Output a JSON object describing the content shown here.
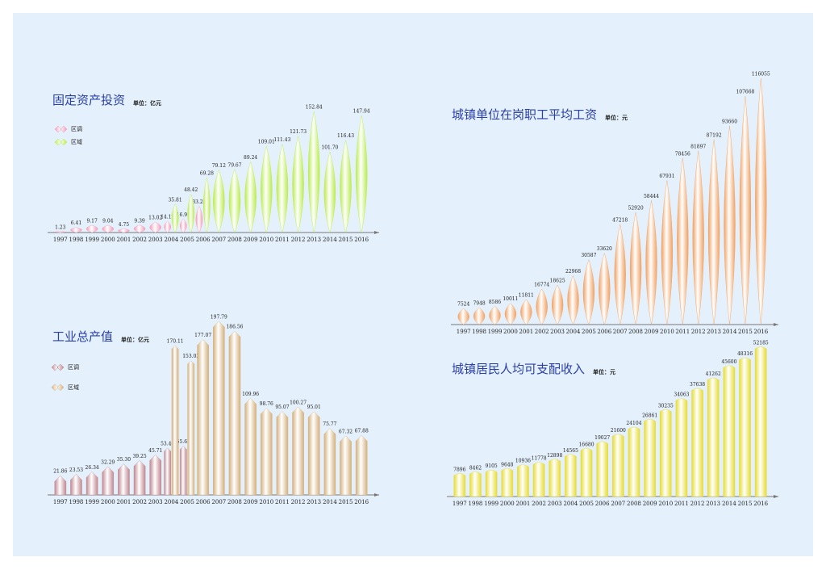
{
  "chart_data": [
    {
      "type": "bar",
      "title": "固定资产投资",
      "unit": "单位：亿元",
      "categories": [
        "1997",
        "1998",
        "1999",
        "2000",
        "2001",
        "2002",
        "2003",
        "2004",
        "2005",
        "2006",
        "2007",
        "2008",
        "2009",
        "2010",
        "2011",
        "2012",
        "2013",
        "2014",
        "2015",
        "2016"
      ],
      "series": [
        {
          "name": "区调",
          "color": "#f29ab8",
          "values": [
            1.23,
            6.41,
            9.17,
            9.04,
            4.75,
            9.39,
            13.02,
            14.12,
            16.91,
            33.25,
            null,
            null,
            null,
            null,
            null,
            null,
            null,
            null,
            null,
            null
          ],
          "value_labels": [
            "1.23",
            "6.41",
            "9.17",
            "9.04",
            "4.75",
            "9.39",
            "13.02",
            "14.12",
            "16.91",
            "33.25",
            null,
            null,
            null,
            null,
            null,
            null,
            null,
            null,
            null,
            null
          ]
        },
        {
          "name": "区域",
          "color": "#b8ec4a",
          "values": [
            null,
            null,
            null,
            null,
            null,
            null,
            null,
            35.81,
            48.42,
            69.28,
            79.12,
            79.67,
            89.24,
            109.01,
            111.43,
            121.73,
            152.84,
            101.7,
            116.43,
            147.94
          ],
          "value_labels": [
            null,
            null,
            null,
            null,
            null,
            null,
            null,
            "35.81",
            "48.42",
            "69.28",
            "79.12",
            "79.67",
            "89.24",
            "109.01",
            "111.43",
            "121.73",
            "152.84",
            "101.70",
            "116.43",
            "147.94"
          ]
        }
      ]
    },
    {
      "type": "bar",
      "title": "工业总产值",
      "unit": "单位：亿元",
      "categories": [
        "1997",
        "1998",
        "1999",
        "2000",
        "2001",
        "2002",
        "2003",
        "2004",
        "2005",
        "2006",
        "2007",
        "2008",
        "2009",
        "2010",
        "2011",
        "2012",
        "2013",
        "2014",
        "2015",
        "2016"
      ],
      "series": [
        {
          "name": "区调",
          "color": "#c08890",
          "values": [
            21.86,
            23.53,
            26.34,
            32.29,
            35.3,
            39.25,
            45.71,
            53.46,
            55.62,
            null,
            null,
            null,
            null,
            null,
            null,
            null,
            null,
            null,
            null,
            null
          ],
          "value_labels": [
            "21.86",
            "23.53",
            "26.34",
            "32.29",
            "35.30",
            "39.25",
            "45.71",
            "53.46",
            "55.62",
            null,
            null,
            null,
            null,
            null,
            null,
            null,
            null,
            null,
            null,
            null
          ]
        },
        {
          "name": "区域",
          "color": "#d4b07c",
          "values": [
            null,
            null,
            null,
            null,
            null,
            null,
            null,
            170.11,
            153.03,
            177.07,
            197.79,
            186.56,
            109.96,
            98.76,
            95.07,
            100.27,
            95.01,
            75.77,
            67.32,
            67.88
          ],
          "value_labels": [
            null,
            null,
            null,
            null,
            null,
            null,
            null,
            "170.11",
            "153.03",
            "177.07",
            "197.79",
            "186.56",
            "109.96",
            "98.76",
            "95.07",
            "100.27",
            "95.01",
            "75.77",
            "67.32",
            "67.88"
          ]
        }
      ]
    },
    {
      "type": "bar",
      "title": "城镇单位在岗职工平均工资",
      "unit": "单位：元",
      "categories": [
        "1997",
        "1998",
        "1999",
        "2000",
        "2001",
        "2002",
        "2003",
        "2004",
        "2005",
        "2006",
        "2007",
        "2008",
        "2009",
        "2010",
        "2011",
        "2012",
        "2013",
        "2014",
        "2015",
        "2016"
      ],
      "series": [
        {
          "color": "#f0a060",
          "values": [
            7524,
            7948,
            8586,
            10011,
            11811,
            16774,
            18625,
            22968,
            30587,
            33620,
            47218,
            52920,
            58444,
            67931,
            78456,
            81897,
            87192,
            93660,
            107668,
            116055
          ]
        }
      ]
    },
    {
      "type": "bar",
      "title": "城镇居民人均可支配收入",
      "unit": "单位：元",
      "categories": [
        "1997",
        "1998",
        "1999",
        "2000",
        "2001",
        "2002",
        "2003",
        "2004",
        "2005",
        "2006",
        "2007",
        "2008",
        "2009",
        "2010",
        "2011",
        "2012",
        "2013",
        "2014",
        "2015",
        "2016"
      ],
      "series": [
        {
          "color": "#e6dc30",
          "values": [
            7896,
            8462,
            9105,
            9648,
            10936,
            11778,
            12898,
            14565,
            16680,
            19027,
            21600,
            24104,
            26861,
            30235,
            34063,
            37638,
            41262,
            45600,
            48316,
            52185
          ]
        }
      ]
    }
  ]
}
